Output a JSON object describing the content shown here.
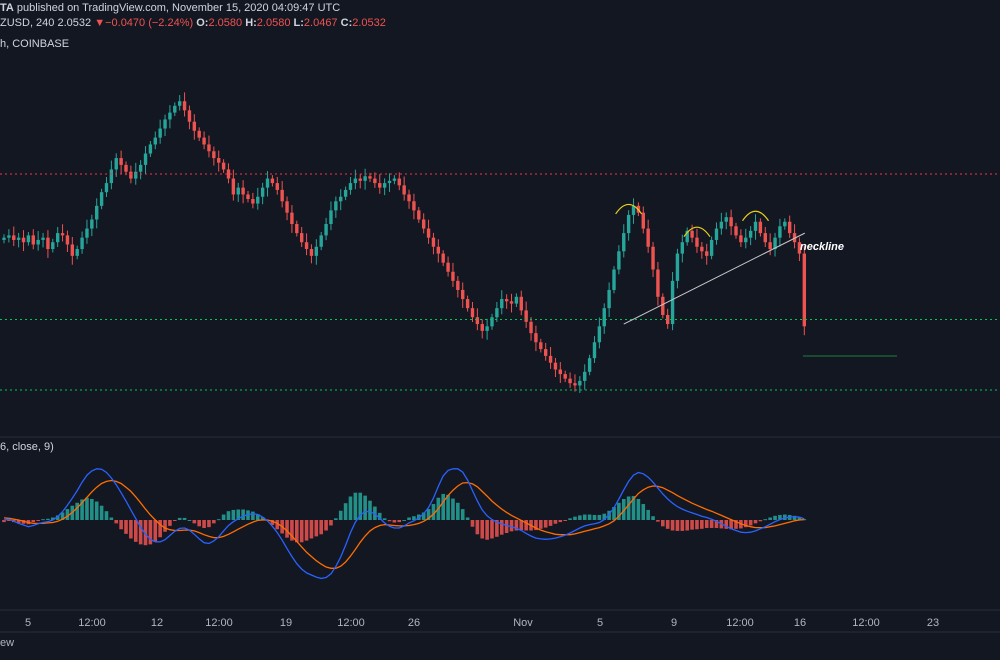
{
  "header": {
    "line1_prefix": "TA",
    "line1_rest": " published on TradingView.com, November 15, 2020 04:09:47 UTC",
    "symbol": "ZUSD, 240",
    "last": "2.0532",
    "arrow": "▼",
    "change": "−0.0470 (−2.24%)",
    "o_label": "O:",
    "o_value": "2.0580",
    "h_label": "H:",
    "h_value": "2.0580",
    "l_label": "L:",
    "l_value": "2.0467",
    "c_label": "C:",
    "c_value": "2.0532",
    "source": "h, COINBASE"
  },
  "macd_label": "6, close, 9)",
  "bottom_label": "ew",
  "annotations": {
    "neckline": "neckline"
  },
  "colors": {
    "background": "#131722",
    "up": "#26a69a",
    "down": "#ef5350",
    "resistance": "#f23645",
    "support": "#00c853",
    "macd_line": "#2962ff",
    "signal_line": "#ff6d00",
    "hist_pos": "#26a69a",
    "hist_neg": "#ef5350",
    "shoulders": "#e6d01c",
    "neckline": "#c8c8c8"
  },
  "chart_data": [
    {
      "type": "candlestick",
      "title": "",
      "xlabel": "",
      "ylabel": "",
      "x_ticks": [
        "5",
        "12:00",
        "12",
        "12:00",
        "19",
        "12:00",
        "26",
        "Nov",
        "5",
        "9",
        "12:00",
        "16",
        "12:00",
        "23"
      ],
      "grid": false,
      "price_close": [
        2.44,
        2.45,
        2.43,
        2.44,
        2.42,
        2.45,
        2.41,
        2.43,
        2.44,
        2.39,
        2.42,
        2.46,
        2.45,
        2.41,
        2.36,
        2.39,
        2.44,
        2.48,
        2.52,
        2.58,
        2.64,
        2.68,
        2.74,
        2.79,
        2.76,
        2.73,
        2.7,
        2.73,
        2.76,
        2.81,
        2.85,
        2.88,
        2.92,
        2.96,
        2.99,
        3.02,
        3.04,
        3.0,
        2.95,
        2.91,
        2.88,
        2.85,
        2.82,
        2.79,
        2.77,
        2.74,
        2.7,
        2.63,
        2.66,
        2.63,
        2.61,
        2.59,
        2.62,
        2.66,
        2.7,
        2.68,
        2.65,
        2.6,
        2.55,
        2.5,
        2.46,
        2.42,
        2.39,
        2.36,
        2.4,
        2.45,
        2.5,
        2.56,
        2.6,
        2.62,
        2.65,
        2.68,
        2.7,
        2.69,
        2.71,
        2.7,
        2.68,
        2.66,
        2.68,
        2.69,
        2.7,
        2.67,
        2.63,
        2.6,
        2.56,
        2.52,
        2.48,
        2.44,
        2.4,
        2.37,
        2.33,
        2.29,
        2.25,
        2.21,
        2.17,
        2.13,
        2.09,
        2.06,
        2.03,
        2.05,
        2.09,
        2.13,
        2.17,
        2.16,
        2.15,
        2.18,
        2.12,
        2.07,
        2.02,
        1.98,
        1.95,
        1.92,
        1.89,
        1.86,
        1.84,
        1.82,
        1.8,
        1.79,
        1.81,
        1.85,
        1.91,
        1.98,
        2.05,
        2.13,
        2.21,
        2.3,
        2.38,
        2.46,
        2.54,
        2.58,
        2.55,
        2.48,
        2.4,
        2.3,
        2.18,
        2.1,
        2.06,
        2.25,
        2.37,
        2.42,
        2.47,
        2.44,
        2.4,
        2.38,
        2.36,
        2.43,
        2.48,
        2.51,
        2.53,
        2.49,
        2.45,
        2.42,
        2.44,
        2.47,
        2.51,
        2.46,
        2.42,
        2.39,
        2.44,
        2.49,
        2.51,
        2.46,
        2.42,
        2.37,
        2.05
      ],
      "macd": [
        0.0,
        0.002,
        -0.003,
        -0.008,
        -0.012,
        -0.016,
        -0.013,
        -0.009,
        -0.006,
        -0.004,
        0.0,
        0.008,
        0.02,
        0.035,
        0.052,
        0.07,
        0.09,
        0.107,
        0.117,
        0.122,
        0.121,
        0.113,
        0.1,
        0.084,
        0.065,
        0.045,
        0.024,
        0.003,
        -0.017,
        -0.034,
        -0.046,
        -0.052,
        -0.052,
        -0.047,
        -0.037,
        -0.027,
        -0.02,
        -0.019,
        -0.024,
        -0.034,
        -0.045,
        -0.054,
        -0.056,
        -0.05,
        -0.04,
        -0.026,
        -0.013,
        -0.004,
        0.003,
        0.009,
        0.013,
        0.015,
        0.013,
        0.007,
        -0.002,
        -0.015,
        -0.03,
        -0.048,
        -0.068,
        -0.087,
        -0.104,
        -0.117,
        -0.126,
        -0.131,
        -0.136,
        -0.139,
        -0.137,
        -0.128,
        -0.111,
        -0.088,
        -0.06,
        -0.03,
        -0.005,
        0.012,
        0.02,
        0.02,
        0.014,
        0.004,
        -0.007,
        -0.015,
        -0.019,
        -0.019,
        -0.014,
        -0.007,
        -0.002,
        0.005,
        0.015,
        0.03,
        0.052,
        0.08,
        0.105,
        0.118,
        0.122,
        0.122,
        0.114,
        0.095,
        0.07,
        0.045,
        0.024,
        0.01,
        0.001,
        -0.005,
        -0.009,
        -0.013,
        -0.016,
        -0.02,
        -0.025,
        -0.032,
        -0.038,
        -0.043,
        -0.045,
        -0.046,
        -0.045,
        -0.043,
        -0.04,
        -0.036,
        -0.031,
        -0.025,
        -0.019,
        -0.014,
        -0.011,
        -0.009,
        -0.006,
        0.001,
        0.013,
        0.029,
        0.05,
        0.072,
        0.092,
        0.107,
        0.113,
        0.11,
        0.102,
        0.09,
        0.076,
        0.062,
        0.05,
        0.04,
        0.032,
        0.026,
        0.021,
        0.017,
        0.013,
        0.009,
        0.006,
        0.002,
        -0.003,
        -0.009,
        -0.015,
        -0.021,
        -0.025,
        -0.029,
        -0.03,
        -0.029,
        -0.026,
        -0.021,
        -0.016,
        -0.01,
        -0.004,
        0.001,
        0.005,
        0.007,
        0.008,
        0.007,
        0.003
      ],
      "signal": [
        0.005,
        0.004,
        0.002,
        0.0,
        -0.003,
        -0.006,
        -0.008,
        -0.008,
        -0.008,
        -0.007,
        -0.006,
        -0.003,
        0.002,
        0.009,
        0.018,
        0.029,
        0.041,
        0.054,
        0.067,
        0.078,
        0.087,
        0.092,
        0.094,
        0.092,
        0.087,
        0.078,
        0.068,
        0.055,
        0.041,
        0.026,
        0.012,
        0.0,
        -0.011,
        -0.019,
        -0.023,
        -0.025,
        -0.025,
        -0.024,
        -0.024,
        -0.026,
        -0.03,
        -0.035,
        -0.039,
        -0.042,
        -0.042,
        -0.039,
        -0.034,
        -0.028,
        -0.022,
        -0.016,
        -0.01,
        -0.005,
        -0.001,
        0.0,
        0.0,
        -0.003,
        -0.008,
        -0.016,
        -0.026,
        -0.038,
        -0.051,
        -0.064,
        -0.077,
        -0.087,
        -0.097,
        -0.105,
        -0.112,
        -0.115,
        -0.115,
        -0.11,
        -0.1,
        -0.086,
        -0.07,
        -0.053,
        -0.038,
        -0.026,
        -0.018,
        -0.013,
        -0.011,
        -0.012,
        -0.013,
        -0.014,
        -0.014,
        -0.013,
        -0.011,
        -0.008,
        -0.003,
        0.004,
        0.014,
        0.027,
        0.043,
        0.058,
        0.071,
        0.081,
        0.088,
        0.089,
        0.086,
        0.079,
        0.068,
        0.057,
        0.045,
        0.035,
        0.026,
        0.018,
        0.011,
        0.005,
        -0.001,
        -0.007,
        -0.013,
        -0.019,
        -0.024,
        -0.028,
        -0.031,
        -0.034,
        -0.035,
        -0.035,
        -0.035,
        -0.033,
        -0.03,
        -0.027,
        -0.024,
        -0.021,
        -0.018,
        -0.014,
        -0.009,
        -0.002,
        0.009,
        0.022,
        0.036,
        0.05,
        0.063,
        0.072,
        0.078,
        0.081,
        0.08,
        0.077,
        0.071,
        0.065,
        0.058,
        0.052,
        0.046,
        0.04,
        0.035,
        0.03,
        0.025,
        0.021,
        0.016,
        0.011,
        0.006,
        0.001,
        -0.004,
        -0.009,
        -0.013,
        -0.016,
        -0.018,
        -0.018,
        -0.018,
        -0.016,
        -0.014,
        -0.011,
        -0.008,
        -0.005,
        -0.002,
        0.0,
        0.001
      ],
      "levels": {
        "resistance": 2.72,
        "support_upper": 2.08,
        "support_lower": 1.77
      },
      "neckline": {
        "from": [
          127,
          2.06
        ],
        "to": [
          160,
          2.46
        ]
      },
      "shoulders": [
        128,
        142,
        154
      ]
    }
  ]
}
